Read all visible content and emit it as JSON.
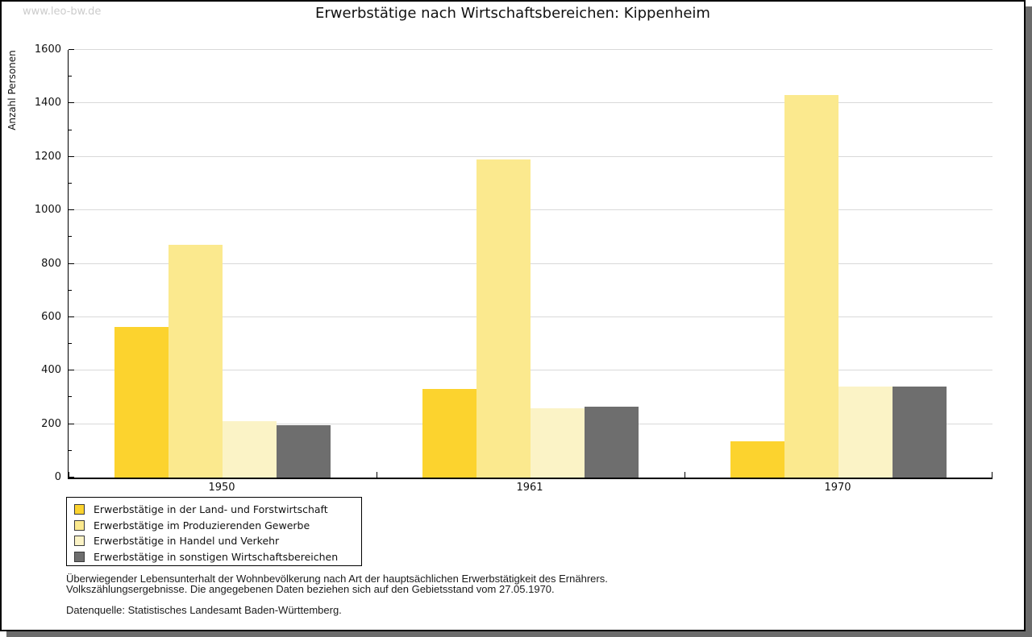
{
  "watermark": "www.leo-bw.de",
  "title": "Erwerbstätige nach Wirtschaftsbereichen: Kippenheim",
  "chart_data": {
    "type": "bar",
    "title": "Erwerbstätige nach Wirtschaftsbereichen: Kippenheim",
    "xlabel": "",
    "ylabel": "Anzahl Personen",
    "ylim": [
      0,
      1600
    ],
    "ytick_step": 200,
    "ytick_minor_step": 100,
    "grid": true,
    "legend_position": "bottom-left",
    "categories": [
      "1950",
      "1961",
      "1970"
    ],
    "series": [
      {
        "name": "Erwerbstätige in der Land- und Forstwirtschaft",
        "color": "#FCD32E",
        "values": [
          565,
          330,
          135
        ]
      },
      {
        "name": "Erwerbstätige im Produzierenden Gewerbe",
        "color": "#FBE98E",
        "values": [
          870,
          1190,
          1430
        ]
      },
      {
        "name": "Erwerbstätige in Handel und Verkehr",
        "color": "#FBF3C6",
        "values": [
          210,
          260,
          340
        ]
      },
      {
        "name": "Erwerbstätige in sonstigen Wirtschaftsbereichen",
        "color": "#6E6E6E",
        "values": [
          195,
          265,
          340
        ]
      }
    ],
    "colors": {
      "gridline": "#d9d9d9",
      "axis": "#000000",
      "watermark": "#cccccc",
      "shadow": "#6b6b6b"
    }
  },
  "footnotes": {
    "line1": "Überwiegender Lebensunterhalt der Wohnbevölkerung nach Art der hauptsächlichen Erwerbstätigkeit des Ernährers.",
    "line2": "Volkszählungsergebnisse. Die angegebenen Daten beziehen sich auf den Gebietsstand vom 27.05.1970.",
    "source": "Datenquelle: Statistisches Landesamt Baden-Württemberg."
  }
}
